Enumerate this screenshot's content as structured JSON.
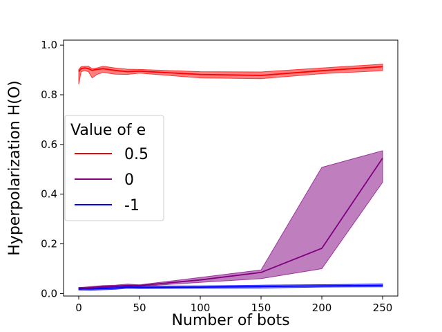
{
  "chart_data": {
    "type": "line",
    "title": "",
    "xlabel": "Number of bots",
    "ylabel": "Hyperpolarization H(O)",
    "xlim": [
      -12.5,
      262.5
    ],
    "ylim": [
      -0.01,
      1.02
    ],
    "xticks": [
      0,
      50,
      100,
      150,
      200,
      250
    ],
    "xtick_labels": [
      "0",
      "50",
      "100",
      "150",
      "200",
      "250"
    ],
    "yticks": [
      0.0,
      0.2,
      0.4,
      0.6,
      0.8,
      1.0
    ],
    "ytick_labels": [
      "0.0",
      "0.2",
      "0.4",
      "0.6",
      "0.8",
      "1.0"
    ],
    "grid": false,
    "legend": {
      "title": "Value of e",
      "position": "center-left"
    },
    "series": [
      {
        "name": "0.5",
        "color": "#ff0000",
        "x": [
          0,
          2,
          5,
          8,
          11,
          15,
          20,
          30,
          40,
          50,
          100,
          150,
          200,
          250
        ],
        "y": [
          0.893,
          0.905,
          0.908,
          0.905,
          0.898,
          0.902,
          0.905,
          0.898,
          0.893,
          0.895,
          0.882,
          0.878,
          0.897,
          0.913
        ],
        "lower": [
          0.843,
          0.893,
          0.897,
          0.893,
          0.868,
          0.882,
          0.89,
          0.883,
          0.882,
          0.887,
          0.868,
          0.865,
          0.885,
          0.897
        ],
        "upper": [
          0.902,
          0.913,
          0.915,
          0.915,
          0.905,
          0.908,
          0.915,
          0.908,
          0.903,
          0.902,
          0.893,
          0.892,
          0.908,
          0.923
        ]
      },
      {
        "name": "0",
        "color": "#800080",
        "x": [
          0,
          10,
          20,
          30,
          40,
          50,
          100,
          150,
          200,
          250
        ],
        "y": [
          0.02,
          0.024,
          0.028,
          0.03,
          0.033,
          0.032,
          0.055,
          0.085,
          0.182,
          0.545
        ],
        "lower": [
          0.016,
          0.02,
          0.024,
          0.026,
          0.029,
          0.029,
          0.045,
          0.06,
          0.1,
          0.448
        ],
        "upper": [
          0.024,
          0.028,
          0.032,
          0.034,
          0.038,
          0.035,
          0.065,
          0.095,
          0.508,
          0.575
        ]
      },
      {
        "name": "-1",
        "color": "#0000ff",
        "x": [
          0,
          10,
          20,
          30,
          40,
          50,
          100,
          150,
          200,
          250
        ],
        "y": [
          0.019,
          0.018,
          0.02,
          0.022,
          0.026,
          0.025,
          0.026,
          0.028,
          0.031,
          0.033
        ],
        "lower": [
          0.014,
          0.013,
          0.015,
          0.017,
          0.021,
          0.02,
          0.021,
          0.022,
          0.026,
          0.027
        ],
        "upper": [
          0.024,
          0.023,
          0.025,
          0.027,
          0.031,
          0.03,
          0.031,
          0.034,
          0.036,
          0.039
        ]
      }
    ]
  }
}
